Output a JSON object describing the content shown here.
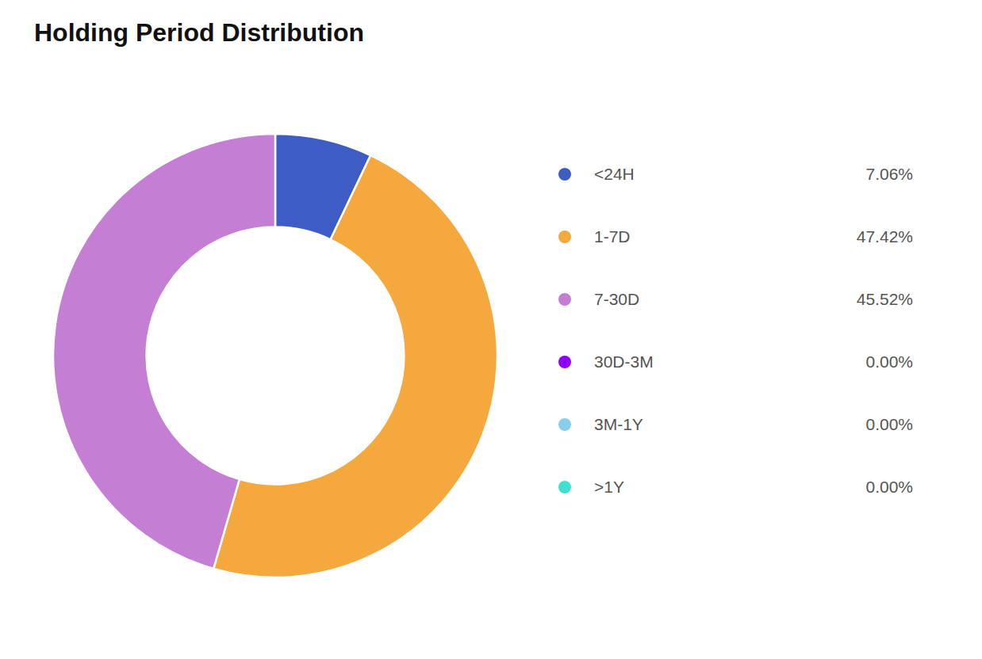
{
  "chart_data": {
    "type": "donut",
    "title": "Holding Period Distribution",
    "categories": [
      "<24H",
      "1-7D",
      "7-30D",
      "30D-3M",
      "3M-1Y",
      ">1Y"
    ],
    "values": [
      7.06,
      47.42,
      45.52,
      0.0,
      0.0,
      0.0
    ],
    "value_labels": [
      "7.06%",
      "47.42%",
      "45.52%",
      "0.00%",
      "0.00%",
      "0.00%"
    ],
    "colors": [
      "#3d5cc4",
      "#f5a83d",
      "#c47ed4",
      "#8b00ff",
      "#87ceeb",
      "#40e0d0"
    ],
    "legend": "right"
  }
}
